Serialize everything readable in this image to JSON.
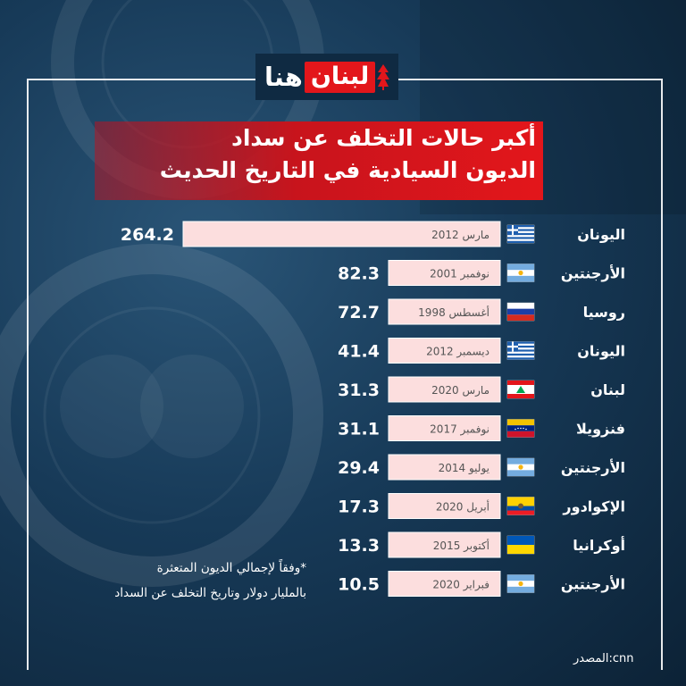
{
  "brand": {
    "logo_red_text": "لبنان",
    "logo_white_text": "هنا"
  },
  "title": {
    "line1": "أكبر حالات التخلف عن سداد",
    "line2": "الديون السيادية في التاريخ الحديث"
  },
  "note": {
    "line1": "*وفقاً لإجمالي الديون المتعثرة",
    "line2": "بالمليار دولار وتاريخ التخلف عن السداد"
  },
  "source": "المصدر:cnn",
  "colors": {
    "bar_fill": "#fcdede",
    "bar_edge": "#ffffff",
    "title_red": "#e3161b",
    "background": "#173a58",
    "date_text": "#555555",
    "value_text": "#ffffff"
  },
  "chart_data": {
    "type": "bar",
    "orientation": "horizontal",
    "categories": [
      "اليونان",
      "الأرجنتين",
      "روسيا",
      "اليونان",
      "لبنان",
      "فنزويلا",
      "الأرجنتين",
      "الإكوادور",
      "أوكرانيا",
      "الأرجنتين"
    ],
    "dates": [
      "مارس 2012",
      "نوفمبر 2001",
      "أغسطس 1998",
      "ديسمبر 2012",
      "مارس 2020",
      "نوفمبر 2017",
      "يوليو 2014",
      "أبريل 2020",
      "أكتوبر 2015",
      "فبراير 2020"
    ],
    "flags": [
      "greece-flag",
      "argentina-flag",
      "russia-flag",
      "greece-flag",
      "lebanon-flag",
      "venezuela-flag",
      "argentina-flag",
      "ecuador-flag",
      "ukraine-flag",
      "argentina-flag"
    ],
    "values": [
      264.2,
      82.3,
      72.7,
      41.4,
      31.3,
      31.1,
      29.4,
      17.3,
      13.3,
      10.5
    ],
    "value_labels": [
      "264.2",
      "82.3",
      "72.7",
      "41.4",
      "31.3",
      "31.1",
      "29.4",
      "17.3",
      "13.3",
      "10.5"
    ],
    "grid": false,
    "legend": "none"
  }
}
